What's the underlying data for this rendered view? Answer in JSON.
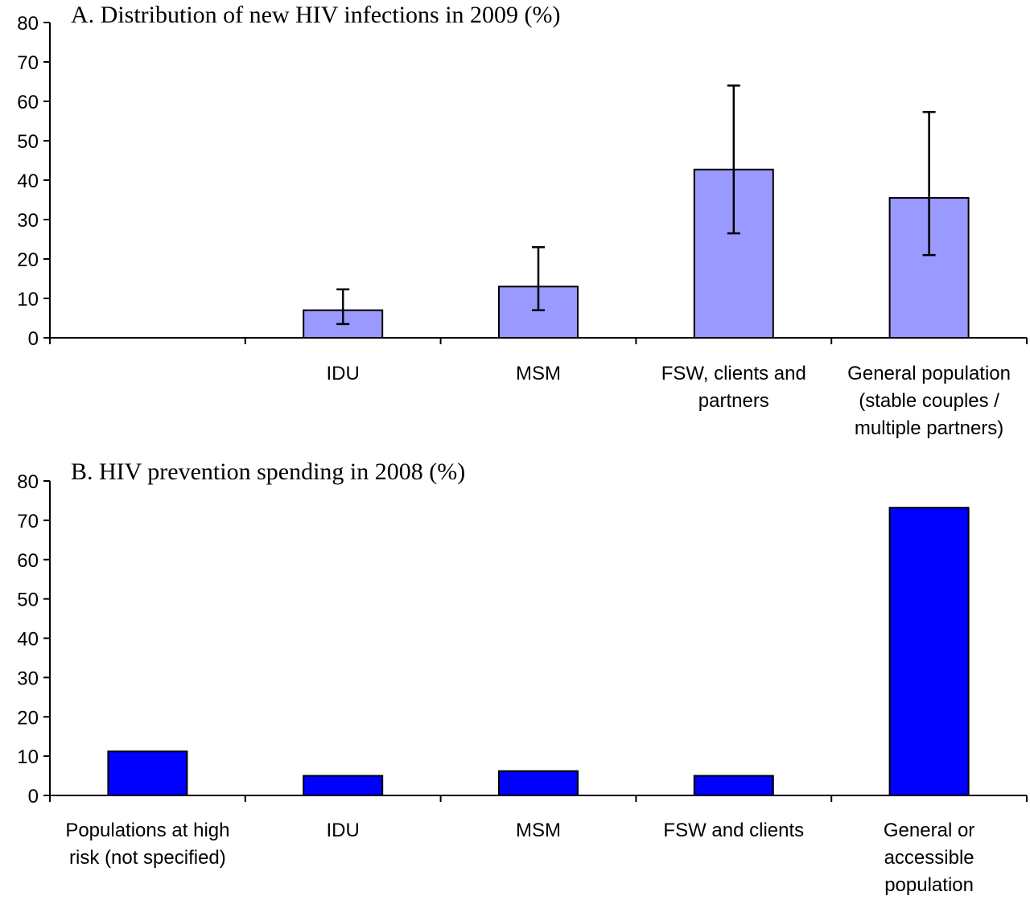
{
  "chart_data": [
    {
      "type": "bar",
      "title": "A. Distribution of new HIV infections in 2009 (%)",
      "xlabel": "",
      "ylabel": "",
      "ylim": [
        0,
        80
      ],
      "yticks": [
        0,
        10,
        20,
        30,
        40,
        50,
        60,
        70,
        80
      ],
      "grid": false,
      "legend": "none",
      "bar_color": "#9999ff",
      "categories": [
        [
          ""
        ],
        [
          "IDU"
        ],
        [
          "MSM"
        ],
        [
          "FSW, clients and",
          "partners"
        ],
        [
          "General population",
          "(stable couples /",
          "multiple partners)"
        ]
      ],
      "values": [
        null,
        7,
        13,
        42.7,
        35.5
      ],
      "error_low": [
        null,
        3.5,
        7,
        26.5,
        21
      ],
      "error_high": [
        null,
        12.3,
        23,
        64,
        57.3
      ]
    },
    {
      "type": "bar",
      "title": "B. HIV prevention spending in 2008 (%)",
      "xlabel": "",
      "ylabel": "",
      "ylim": [
        0,
        80
      ],
      "yticks": [
        0,
        10,
        20,
        30,
        40,
        50,
        60,
        70,
        80
      ],
      "grid": false,
      "legend": "none",
      "bar_color": "#0000ff",
      "categories": [
        [
          "Populations at high",
          "risk (not specified)"
        ],
        [
          "IDU"
        ],
        [
          "MSM"
        ],
        [
          "FSW and clients"
        ],
        [
          "General or",
          "accessible",
          "population"
        ]
      ],
      "values": [
        11.2,
        5,
        6.2,
        5,
        73.2
      ]
    }
  ]
}
